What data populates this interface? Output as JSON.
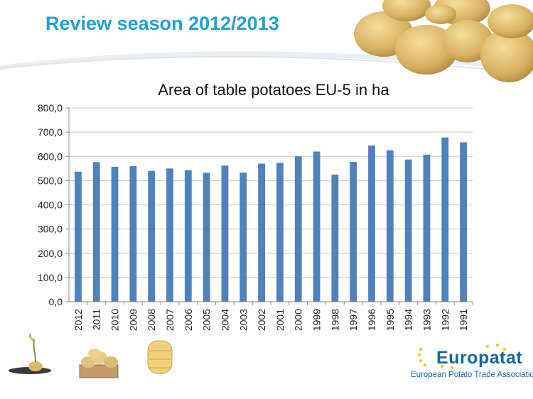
{
  "slide": {
    "title": "Review season 2012/2013"
  },
  "chart_data": {
    "type": "bar",
    "title": "Area of table potatoes EU-5 in ha",
    "categories": [
      "2012",
      "2011",
      "2010",
      "2009",
      "2008",
      "2007",
      "2006",
      "2005",
      "2004",
      "2003",
      "2002",
      "2001",
      "2000",
      "1999",
      "1998",
      "1997",
      "1996",
      "1995",
      "1994",
      "1993",
      "1992",
      "1991"
    ],
    "values": [
      537,
      576,
      557,
      560,
      540,
      550,
      543,
      532,
      562,
      533,
      570,
      573,
      600,
      620,
      525,
      577,
      645,
      625,
      587,
      607,
      678,
      658
    ],
    "ylim": [
      0,
      800
    ],
    "yticks": [
      "0,0",
      "100,0",
      "200,0",
      "300,0",
      "400,0",
      "500,0",
      "600,0",
      "700,0",
      "800,0"
    ],
    "ytick_values": [
      0,
      100,
      200,
      300,
      400,
      500,
      600,
      700,
      800
    ],
    "grid": true,
    "legend": "none",
    "bar_color": "#4f81bd"
  },
  "footer": {
    "logo_text": "Europatat",
    "tagline": "European Potato Trade Association"
  }
}
